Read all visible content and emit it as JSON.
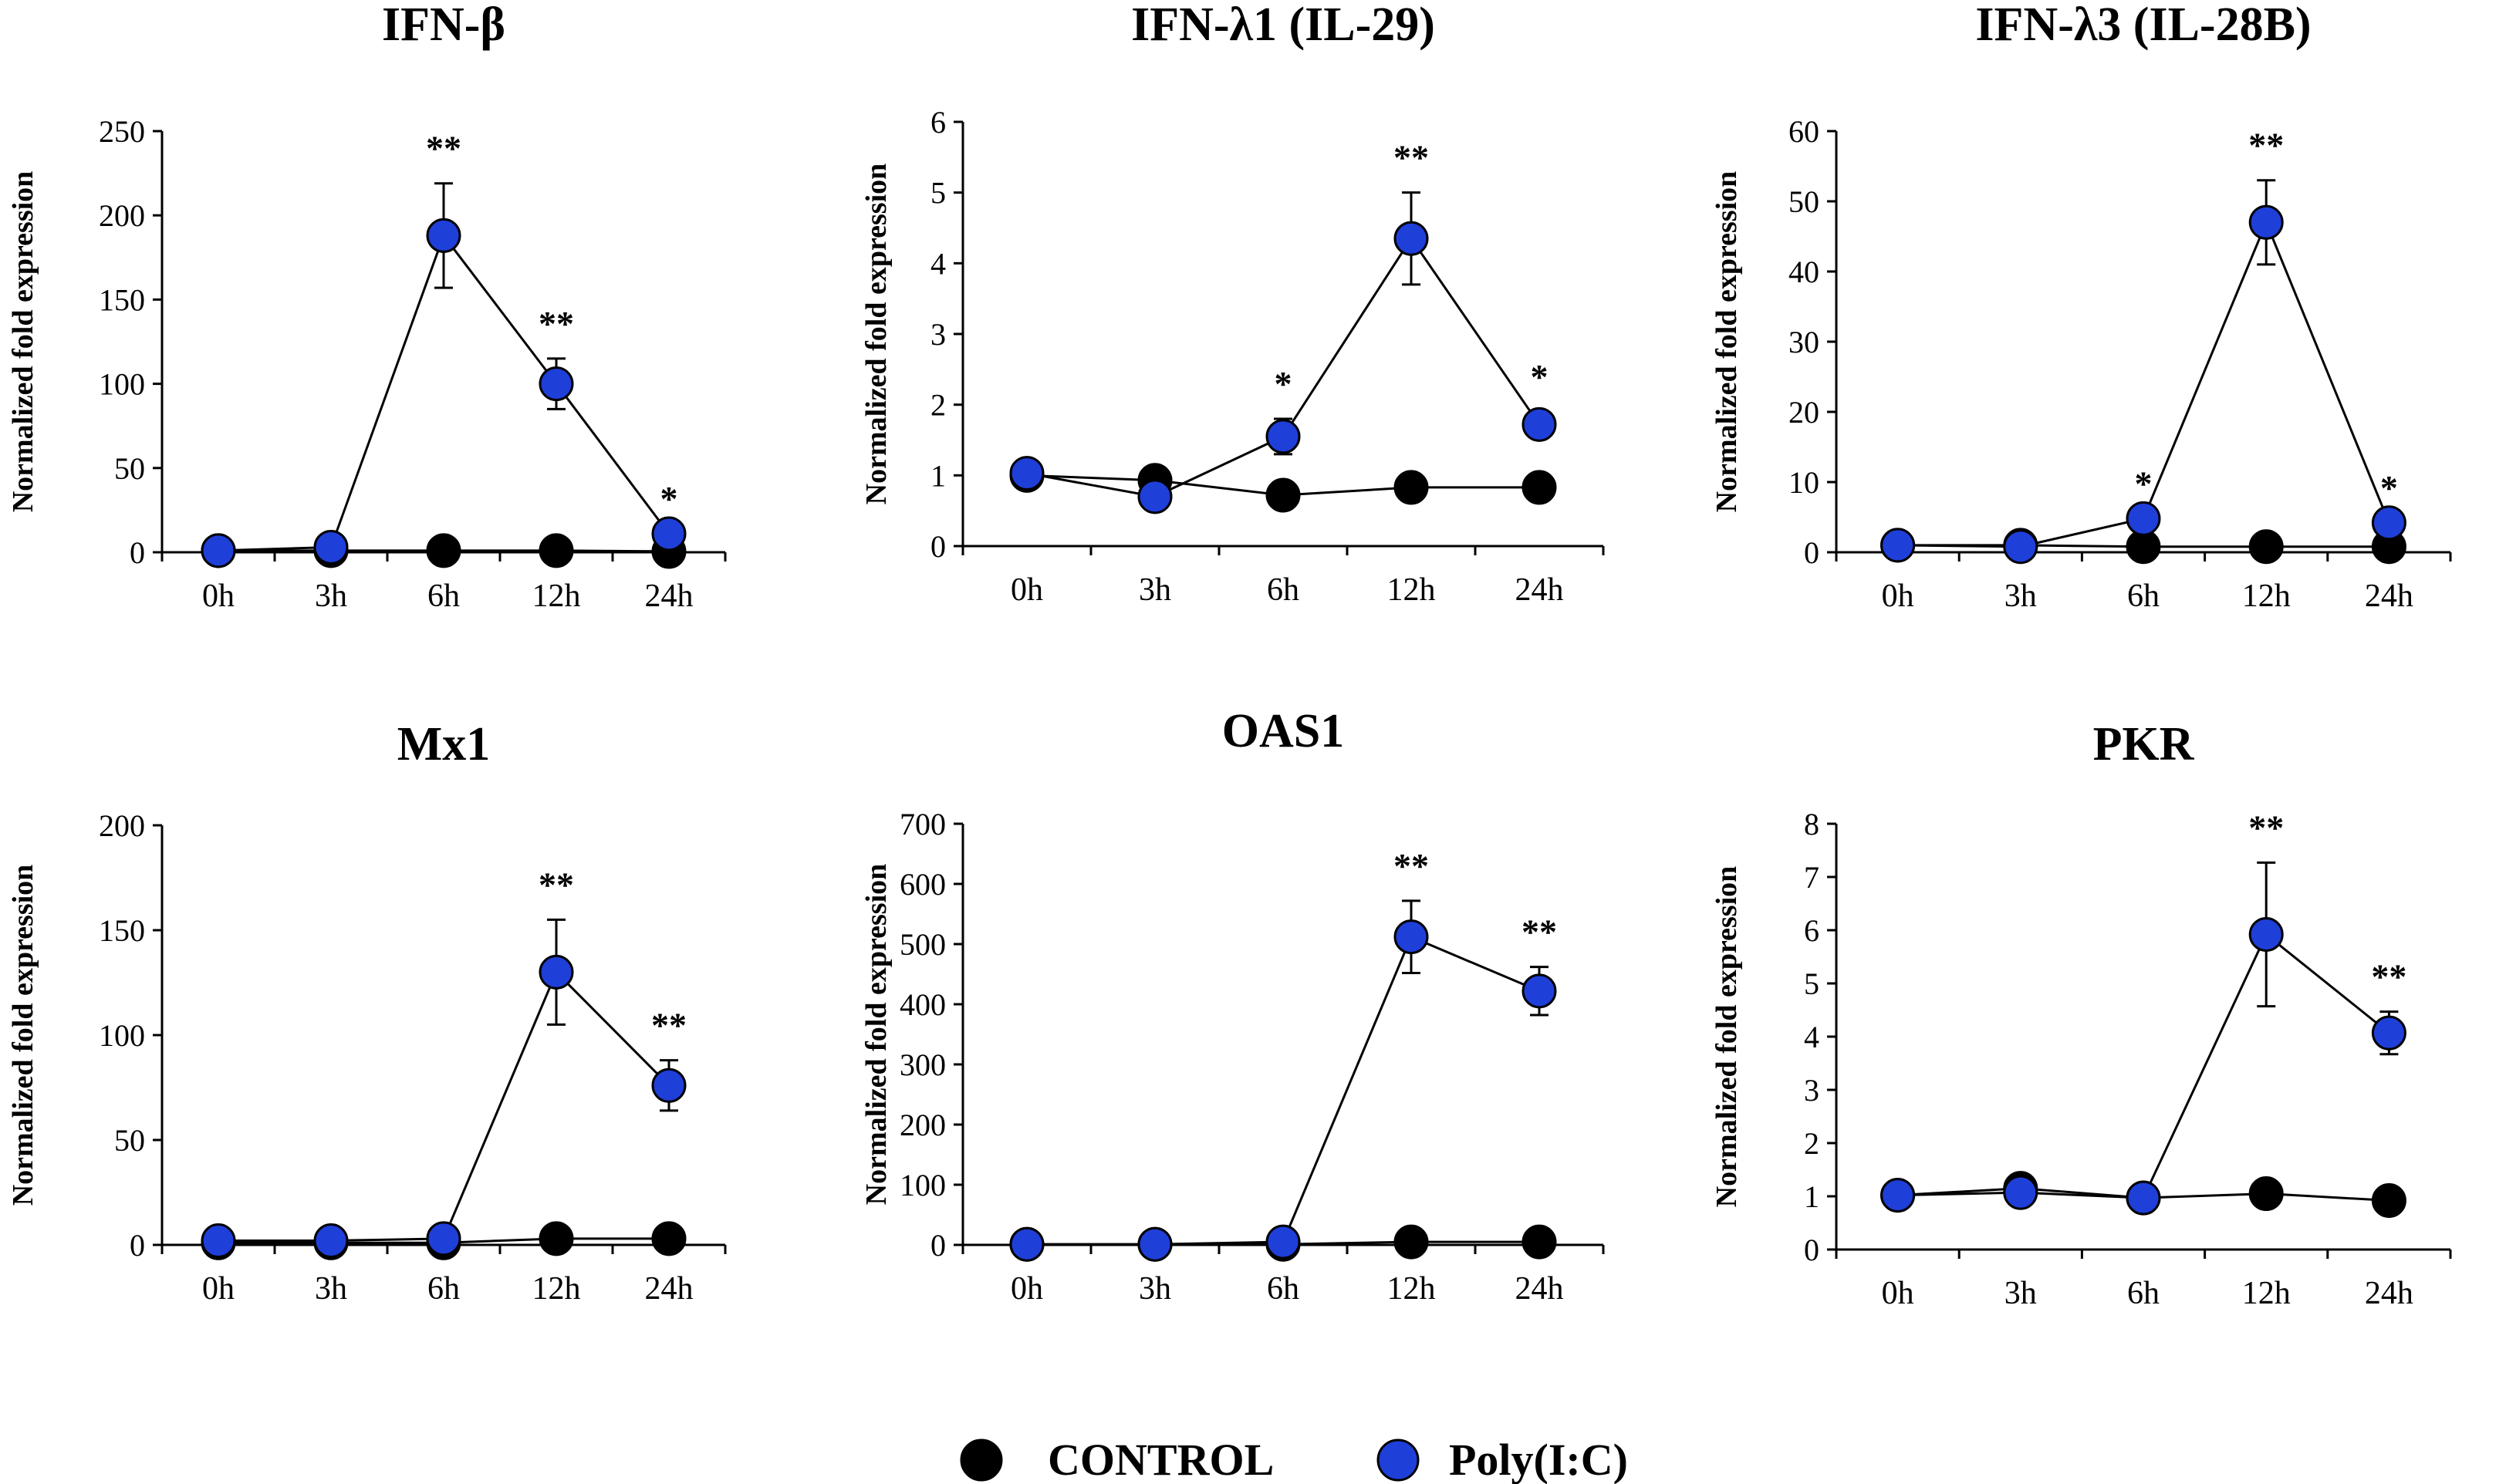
{
  "colors": {
    "control": "#000000",
    "treated": "#1f3fd9",
    "axis": "#000000",
    "line": "#000000"
  },
  "legend": {
    "control_label": "CONTROL",
    "treated_label": "Poly(I:C)"
  },
  "chart_data": [
    {
      "type": "line",
      "title": "IFN-β",
      "xlabel": "",
      "ylabel": "Normalized fold expression",
      "categories": [
        "0h",
        "3h",
        "6h",
        "12h",
        "24h"
      ],
      "ylim": [
        0,
        250
      ],
      "yticks": [
        0,
        50,
        100,
        150,
        200,
        250
      ],
      "series": [
        {
          "name": "CONTROL",
          "values": [
            1,
            1,
            1,
            1,
            0.5
          ],
          "errors": [
            0,
            0,
            0,
            0,
            0
          ]
        },
        {
          "name": "Poly(I:C)",
          "values": [
            1,
            3,
            188,
            100,
            11
          ],
          "errors": [
            0,
            0,
            31,
            15,
            0
          ]
        }
      ],
      "significance": [
        "",
        "",
        "**",
        "**",
        "*"
      ]
    },
    {
      "type": "line",
      "title": "IFN-λ1 (IL-29)",
      "xlabel": "",
      "ylabel": "Normalized fold expression",
      "categories": [
        "0h",
        "3h",
        "6h",
        "12h",
        "24h"
      ],
      "ylim": [
        0,
        6
      ],
      "yticks": [
        0,
        1,
        2,
        3,
        4,
        5,
        6
      ],
      "series": [
        {
          "name": "CONTROL",
          "values": [
            1.0,
            0.93,
            0.72,
            0.83,
            0.83
          ],
          "errors": [
            0.13,
            0.1,
            0.1,
            0.07,
            0.18
          ]
        },
        {
          "name": "Poly(I:C)",
          "values": [
            1.03,
            0.7,
            1.55,
            4.35,
            1.72
          ],
          "errors": [
            0.05,
            0.05,
            0.25,
            0.65,
            0.18
          ]
        }
      ],
      "significance": [
        "",
        "",
        "*",
        "**",
        "*"
      ]
    },
    {
      "type": "line",
      "title": "IFN-λ3 (IL-28B)",
      "xlabel": "",
      "ylabel": "Normalized fold expression",
      "categories": [
        "0h",
        "3h",
        "6h",
        "12h",
        "24h"
      ],
      "ylim": [
        0,
        60
      ],
      "yticks": [
        0,
        10,
        20,
        30,
        40,
        50,
        60
      ],
      "series": [
        {
          "name": "CONTROL",
          "values": [
            1,
            1,
            0.8,
            0.8,
            0.8
          ],
          "errors": [
            0,
            0,
            0,
            0,
            0
          ]
        },
        {
          "name": "Poly(I:C)",
          "values": [
            1,
            0.8,
            4.8,
            47,
            4.2
          ],
          "errors": [
            0,
            0,
            0,
            6,
            0
          ]
        }
      ],
      "significance": [
        "",
        "",
        "*",
        "**",
        "*"
      ]
    },
    {
      "type": "line",
      "title": "Mx1",
      "xlabel": "",
      "ylabel": "Normalized fold expression",
      "categories": [
        "0h",
        "3h",
        "6h",
        "12h",
        "24h"
      ],
      "ylim": [
        0,
        200
      ],
      "yticks": [
        0,
        50,
        100,
        150,
        200
      ],
      "series": [
        {
          "name": "CONTROL",
          "values": [
            1,
            1,
            1,
            3,
            3
          ],
          "errors": [
            0,
            0,
            0,
            0,
            0
          ]
        },
        {
          "name": "Poly(I:C)",
          "values": [
            2,
            2,
            3,
            130,
            76
          ],
          "errors": [
            0,
            0,
            0,
            25,
            12
          ]
        }
      ],
      "significance": [
        "",
        "",
        "",
        "**",
        "**"
      ]
    },
    {
      "type": "line",
      "title": "OAS1",
      "xlabel": "",
      "ylabel": "Normalized fold expression",
      "categories": [
        "0h",
        "3h",
        "6h",
        "12h",
        "24h"
      ],
      "ylim": [
        0,
        700
      ],
      "yticks": [
        0,
        100,
        200,
        300,
        400,
        500,
        600,
        700
      ],
      "series": [
        {
          "name": "CONTROL",
          "values": [
            1,
            1,
            1,
            5,
            5
          ],
          "errors": [
            0,
            0,
            0,
            0,
            0
          ]
        },
        {
          "name": "Poly(I:C)",
          "values": [
            1,
            1,
            5,
            512,
            422
          ],
          "errors": [
            0,
            0,
            0,
            60,
            40
          ]
        }
      ],
      "significance": [
        "",
        "",
        "",
        "**",
        "**"
      ]
    },
    {
      "type": "line",
      "title": "PKR",
      "xlabel": "",
      "ylabel": "Normalized fold expression",
      "categories": [
        "0h",
        "3h",
        "6h",
        "12h",
        "24h"
      ],
      "ylim": [
        0,
        8
      ],
      "yticks": [
        0,
        1,
        2,
        3,
        4,
        5,
        6,
        7,
        8
      ],
      "series": [
        {
          "name": "CONTROL",
          "values": [
            1.02,
            1.15,
            0.97,
            1.05,
            0.92
          ],
          "errors": [
            0.05,
            0.12,
            0.1,
            0.05,
            0.05
          ]
        },
        {
          "name": "Poly(I:C)",
          "values": [
            1.02,
            1.07,
            0.97,
            5.92,
            4.07
          ],
          "errors": [
            0.05,
            0.1,
            0.1,
            1.35,
            0.4
          ]
        }
      ],
      "significance": [
        "",
        "",
        "",
        "**",
        "**"
      ]
    }
  ]
}
